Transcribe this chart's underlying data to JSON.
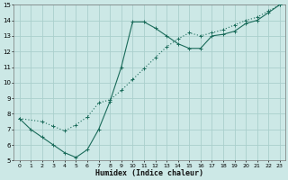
{
  "xlabel": "Humidex (Indice chaleur)",
  "bg_color": "#cce8e6",
  "grid_color": "#aacfcc",
  "line_color": "#1a6b5a",
  "xlim": [
    -0.5,
    23.5
  ],
  "ylim": [
    5,
    15
  ],
  "xticks": [
    0,
    1,
    2,
    3,
    4,
    5,
    6,
    7,
    8,
    9,
    10,
    11,
    12,
    13,
    14,
    15,
    16,
    17,
    18,
    19,
    20,
    21,
    22,
    23
  ],
  "yticks": [
    5,
    6,
    7,
    8,
    9,
    10,
    11,
    12,
    13,
    14,
    15
  ],
  "curve1_x": [
    0,
    1,
    2,
    3,
    4,
    5,
    6,
    7,
    8,
    9,
    10,
    11,
    12,
    13,
    14,
    15,
    16,
    17,
    18,
    19,
    20,
    21,
    22,
    23
  ],
  "curve1_y": [
    7.7,
    7.0,
    6.5,
    6.0,
    5.5,
    5.2,
    5.7,
    7.0,
    8.8,
    11.0,
    13.9,
    13.9,
    13.5,
    13.0,
    12.5,
    12.2,
    12.2,
    13.0,
    13.1,
    13.3,
    13.8,
    14.0,
    14.5,
    15.0
  ],
  "curve2_x": [
    0,
    2,
    3,
    4,
    5,
    6,
    7,
    8,
    9,
    10,
    11,
    12,
    13,
    14,
    15,
    16,
    17,
    18,
    19,
    20,
    21,
    22,
    23
  ],
  "curve2_y": [
    7.7,
    7.5,
    7.2,
    6.9,
    7.3,
    7.8,
    8.7,
    8.9,
    9.5,
    10.2,
    10.9,
    11.6,
    12.3,
    12.8,
    13.2,
    13.0,
    13.2,
    13.4,
    13.7,
    14.0,
    14.2,
    14.6,
    15.0
  ]
}
